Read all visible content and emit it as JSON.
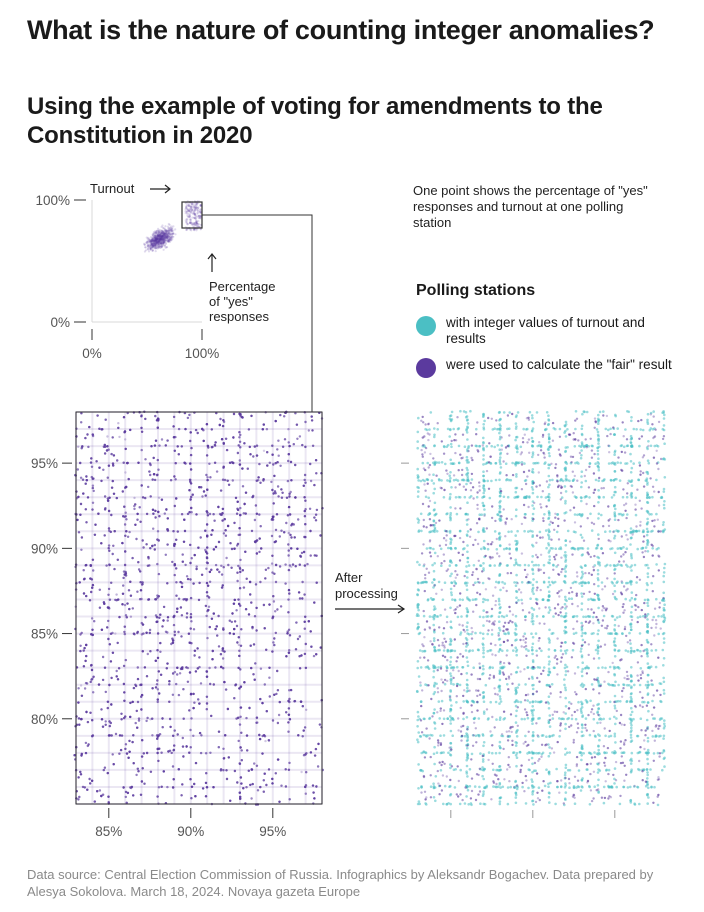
{
  "header": {
    "title": "What is the nature of counting integer anomalies?",
    "subtitle": "Using the example of voting for amendments to the Constitution in 2020"
  },
  "note": "One point shows the percentage of \"yes\" responses and turnout at one polling station",
  "legend": {
    "title": "Polling stations",
    "items": [
      {
        "label": "with integer values of turnout and results",
        "color": "#4bbfc4"
      },
      {
        "label": "were used to calculate the \"fair\" result",
        "color": "#5b3a9e"
      }
    ]
  },
  "source": "Data source: Central Election Commission of Russia. Infographics by Aleksandr Bogachev. Data prepared by Alesya Sokolova. March 18, 2024. Novaya gazeta Europe",
  "colors": {
    "purple": "#5b3a9e",
    "teal": "#4bbfc4",
    "axis": "#333333",
    "muted": "#8a8a8a"
  },
  "chart_data": [
    {
      "type": "scatter",
      "id": "overview",
      "x_axis_label": "Percentage of \"yes\" responses",
      "y_axis_label": "Turnout",
      "x_ticks": [
        "0%",
        "100%"
      ],
      "y_ticks": [
        "100%",
        "0%"
      ],
      "xlim": [
        0,
        100
      ],
      "ylim": [
        0,
        100
      ],
      "turnout_arrow_label": "Turnout",
      "yes_label_lines": [
        "Percentage",
        "of \"yes\"",
        "responses"
      ],
      "cluster": {
        "center_yes": 62,
        "center_turnout": 68,
        "spread": 12
      },
      "zoom_region": {
        "yes": [
          80,
          100
        ],
        "turnout": [
          75,
          98
        ]
      }
    },
    {
      "type": "scatter",
      "id": "before",
      "series": [
        {
          "name": "All polling stations",
          "color": "#5b3a9e"
        }
      ],
      "xlim": [
        83,
        98
      ],
      "ylim": [
        75,
        98
      ],
      "x_ticks": [
        "85%",
        "90%",
        "95%"
      ],
      "x_tick_values": [
        85,
        90,
        95
      ],
      "y_ticks": [
        "95%",
        "90%",
        "85%",
        "80%"
      ],
      "y_tick_values": [
        95,
        90,
        85,
        80
      ],
      "integer_grid_step": 1
    },
    {
      "type": "scatter",
      "id": "after",
      "series": [
        {
          "name": "with integer values of turnout and results",
          "color": "#4bbfc4"
        },
        {
          "name": "were used to calculate the \"fair\" result",
          "color": "#5b3a9e"
        }
      ],
      "xlim": [
        83,
        98
      ],
      "ylim": [
        75,
        98
      ],
      "x_tick_values": [
        85,
        90,
        95
      ],
      "y_tick_values": [
        95,
        90,
        85,
        80
      ],
      "arrow_label_lines": [
        "After",
        "processing"
      ]
    }
  ]
}
